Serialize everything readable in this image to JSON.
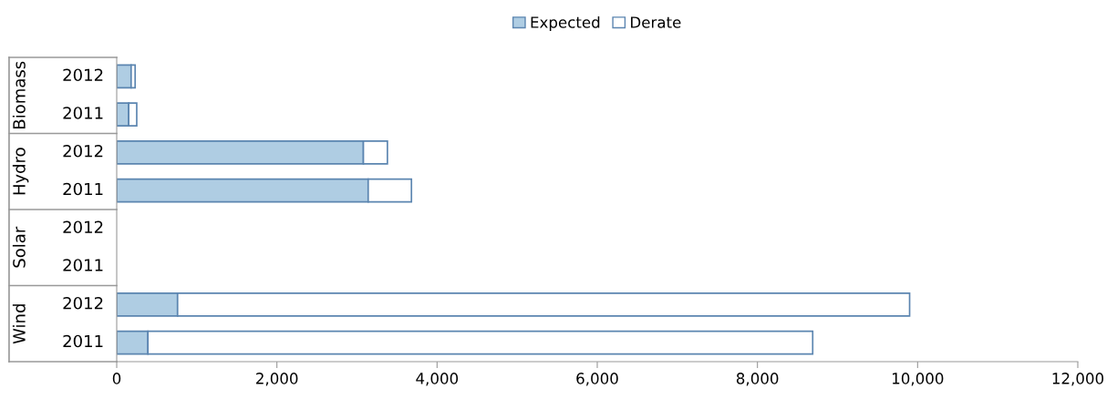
{
  "chart_data": {
    "type": "bar",
    "orientation": "horizontal",
    "stacked": true,
    "categories": [
      "2012",
      "2011",
      "2012",
      "2011",
      "2012",
      "2011",
      "2012",
      "2011"
    ],
    "annotations": [
      "Biomass",
      "Hydro",
      "Solar",
      "Wind"
    ],
    "series": [
      {
        "name": "Expected",
        "color": "#afcde3",
        "values": [
          180,
          150,
          3080,
          3140,
          null,
          null,
          760,
          390
        ]
      },
      {
        "name": "Derate",
        "color": "#ffffff",
        "values": [
          50,
          100,
          300,
          540,
          null,
          null,
          9140,
          8300
        ]
      }
    ],
    "xlim": [
      0,
      12000
    ],
    "xticks": [
      {
        "value": 0,
        "label": "0"
      },
      {
        "value": 2000,
        "label": "2,000"
      },
      {
        "value": 4000,
        "label": "4,000"
      },
      {
        "value": 6000,
        "label": "6,000"
      },
      {
        "value": 8000,
        "label": "8,000"
      },
      {
        "value": 10000,
        "label": "10,000"
      },
      {
        "value": 12000,
        "label": "12,000"
      }
    ],
    "legend": "top",
    "grid": false
  }
}
